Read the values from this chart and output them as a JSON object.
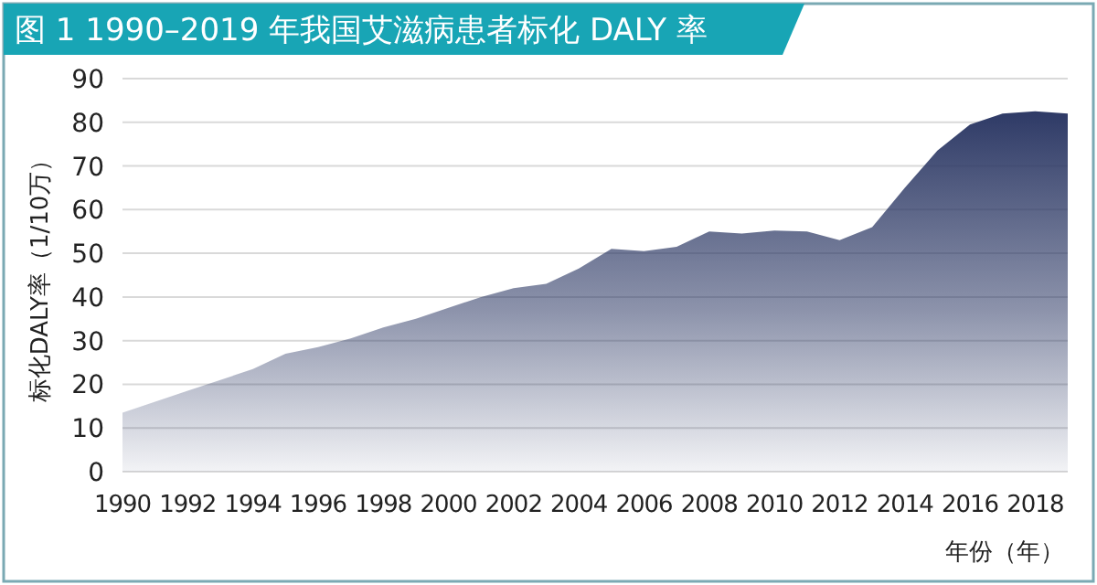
{
  "chart_data": {
    "type": "area",
    "title": "图 1 1990–2019 年我国艾滋病患者标化 DALY 率",
    "xlabel": "年份（年）",
    "ylabel": "标化DALY率（1/10万）",
    "x": [
      1990,
      1991,
      1992,
      1993,
      1994,
      1995,
      1996,
      1997,
      1998,
      1999,
      2000,
      2001,
      2002,
      2003,
      2004,
      2005,
      2006,
      2007,
      2008,
      2009,
      2010,
      2011,
      2012,
      2013,
      2014,
      2015,
      2016,
      2017,
      2018,
      2019
    ],
    "series": [
      {
        "color": "#2e3a66",
        "values": [
          13.5,
          16,
          18.5,
          21,
          23.5,
          27,
          28.5,
          30.5,
          33,
          35,
          37.5,
          40,
          42,
          43,
          46.5,
          51,
          50.5,
          51.5,
          55,
          54.5,
          55.2,
          55,
          53,
          56,
          65,
          73.5,
          79.5,
          82,
          82.5,
          82
        ]
      }
    ],
    "xlim": [
      1990,
      2019
    ],
    "xticks": [
      1990,
      1992,
      1994,
      1996,
      1998,
      2000,
      2002,
      2004,
      2006,
      2008,
      2010,
      2012,
      2014,
      2016,
      2018
    ],
    "ylim": [
      0,
      90
    ],
    "yticks": [
      0,
      10,
      20,
      30,
      40,
      50,
      60,
      70,
      80,
      90
    ],
    "grid": "y"
  }
}
